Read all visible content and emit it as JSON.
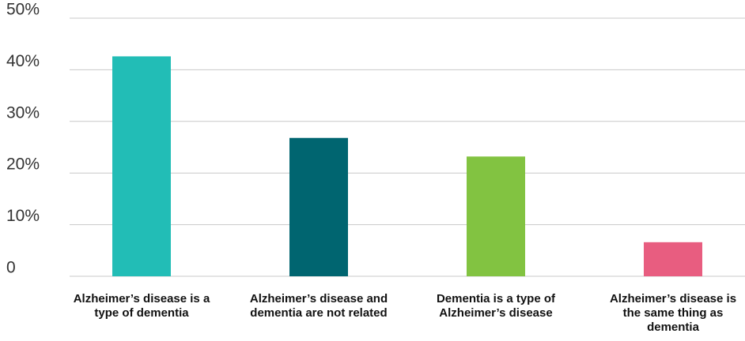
{
  "chart_data": {
    "type": "bar",
    "categories": [
      "Alzheimer’s disease is a type of dementia",
      "Alzheimer’s disease and dementia are not related",
      "Dementia is a type of Alzheimer’s disease",
      "Alzheimer’s disease is the same thing as dementia"
    ],
    "values": [
      42.6,
      26.8,
      23.2,
      6.6
    ],
    "colors": [
      "#22bdb6",
      "#006570",
      "#82c341",
      "#e85d80"
    ],
    "ylim": [
      0,
      50
    ],
    "yticks": [
      0,
      {
        "value": 10,
        "label": "10%"
      },
      {
        "value": 20,
        "label": "20%"
      },
      {
        "value": 30,
        "label": "30%"
      },
      {
        "value": 40,
        "label": "40%"
      },
      {
        "value": 50,
        "label": "50%"
      }
    ],
    "grid": true
  }
}
